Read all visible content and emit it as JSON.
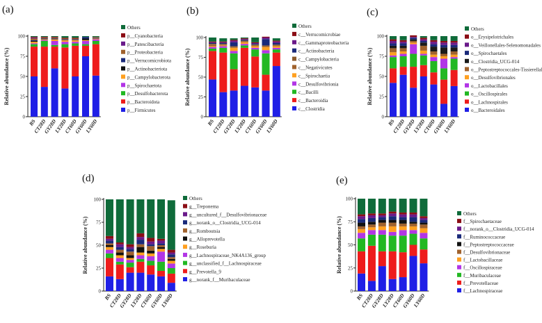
{
  "chart_data": [
    {
      "panel": "(a)",
      "type": "bar",
      "stacked": true,
      "ylabel": "Relative abundance (%)",
      "ylim": [
        0,
        100
      ],
      "yticks": [
        "0",
        "25",
        "50",
        "75",
        "100"
      ],
      "categories": [
        "BS",
        "CT28D",
        "GY28D",
        "LY28D",
        "CT60D",
        "GY60D",
        "LY60D"
      ],
      "series": [
        {
          "name": "p__Firmicutes",
          "color": "#1f1fe6",
          "values": [
            50,
            37,
            60,
            35,
            50,
            75,
            51
          ]
        },
        {
          "name": "p__Bacteroidota",
          "color": "#ee1c1c",
          "values": [
            37,
            50,
            27,
            51,
            38,
            13,
            39
          ]
        },
        {
          "name": "p__Desulfobacterota",
          "color": "#22b822",
          "values": [
            3,
            7,
            2,
            4,
            3,
            2,
            4
          ]
        },
        {
          "name": "p__Spirochaetota",
          "color": "#b235e6",
          "values": [
            1,
            1,
            5,
            3,
            2,
            4,
            2
          ]
        },
        {
          "name": "p__Campylobacterota",
          "color": "#ffa020",
          "values": [
            2,
            1,
            2,
            2,
            2,
            1,
            1
          ]
        },
        {
          "name": "p__Actinobacteriota",
          "color": "#111111",
          "values": [
            1,
            0,
            0,
            0,
            0,
            2,
            0
          ]
        },
        {
          "name": "p__Verrucomicrobiota",
          "color": "#1a2a7a",
          "values": [
            1,
            1,
            1,
            1,
            1,
            2,
            1
          ]
        },
        {
          "name": "p__Proteobacteria",
          "color": "#a0622d",
          "values": [
            2,
            1,
            1,
            1,
            1,
            0,
            1
          ]
        },
        {
          "name": "p__Patescibacteria",
          "color": "#6a1a8a",
          "values": [
            1,
            0,
            0,
            0,
            0,
            0,
            0
          ]
        },
        {
          "name": "p__Cyanobacteria",
          "color": "#8b0d15",
          "values": [
            1,
            1,
            1,
            1,
            1,
            0,
            0
          ]
        },
        {
          "name": "Others",
          "color": "#0f6b3a",
          "values": [
            1,
            1,
            1,
            2,
            2,
            1,
            1
          ]
        }
      ]
    },
    {
      "panel": "(b)",
      "type": "bar",
      "stacked": true,
      "ylabel": "Relative abundance (%)",
      "ylim": [
        0,
        100
      ],
      "yticks": [
        "0",
        "25",
        "50",
        "75",
        "100"
      ],
      "categories": [
        "BS",
        "CT28D",
        "GY28D",
        "LY28D",
        "CT60D",
        "GY60D",
        "LY60D"
      ],
      "series": [
        {
          "name": "c__Clostridia",
          "color": "#1f1fe6",
          "values": [
            47,
            31,
            33,
            39,
            37,
            33,
            64
          ]
        },
        {
          "name": "c__Bacteroidia",
          "color": "#ee1c1c",
          "values": [
            36,
            50,
            27,
            48,
            39,
            20,
            17
          ]
        },
        {
          "name": "c__Bacilli",
          "color": "#22b822",
          "values": [
            3,
            6,
            20,
            3,
            9,
            27,
            4
          ]
        },
        {
          "name": "c__Desulfovibrionia",
          "color": "#b235e6",
          "values": [
            2,
            2,
            3,
            2,
            2,
            4,
            2
          ]
        },
        {
          "name": "c__Spirochaetia",
          "color": "#ffa020",
          "values": [
            1,
            1,
            4,
            2,
            2,
            4,
            2
          ]
        },
        {
          "name": "c__Negativicutes",
          "color": "#a0622d",
          "values": [
            2,
            1,
            1,
            1,
            1,
            1,
            1
          ]
        },
        {
          "name": "c__Campylobacteria",
          "color": "#8b5a2b",
          "values": [
            1,
            1,
            1,
            1,
            1,
            1,
            1
          ]
        },
        {
          "name": "c__Actinobacteria",
          "color": "#1a2a7a",
          "values": [
            1,
            1,
            5,
            1,
            1,
            8,
            2
          ]
        },
        {
          "name": "c__Gammaproteobacteria",
          "color": "#6a1a8a",
          "values": [
            1,
            1,
            2,
            1,
            1,
            2,
            2
          ]
        },
        {
          "name": "c__Verrucomicrobiae",
          "color": "#8b0d15",
          "values": [
            1,
            1,
            1,
            1,
            1,
            1,
            1
          ]
        },
        {
          "name": "Others",
          "color": "#0f6b3a",
          "values": [
            5,
            4,
            2,
            1,
            6,
            0,
            3
          ]
        }
      ]
    },
    {
      "panel": "(c)",
      "type": "bar",
      "stacked": true,
      "ylabel": "Relative abundance (%)",
      "ylim": [
        0,
        100
      ],
      "yticks": [
        "0",
        "25",
        "50",
        "75",
        "100"
      ],
      "categories": [
        "BS",
        "CT28D",
        "GY28D",
        "LY28D",
        "CT60D",
        "GY60D",
        "LY60D"
      ],
      "series": [
        {
          "name": "o__Bacteroidales",
          "color": "#1f1fe6",
          "values": [
            42,
            52,
            36,
            50,
            40,
            16,
            38
          ]
        },
        {
          "name": "o__Lachnospirales",
          "color": "#ee1c1c",
          "values": [
            18,
            10,
            26,
            14,
            15,
            30,
            20
          ]
        },
        {
          "name": "o__Oscillospirales",
          "color": "#22b822",
          "values": [
            14,
            13,
            16,
            12,
            14,
            14,
            14
          ]
        },
        {
          "name": "o__Lactobacillales",
          "color": "#b235e6",
          "values": [
            2,
            3,
            12,
            2,
            5,
            12,
            2
          ]
        },
        {
          "name": "o__Desulfovibrionales",
          "color": "#ffa020",
          "values": [
            4,
            3,
            2,
            4,
            3,
            3,
            3
          ]
        },
        {
          "name": "o__Peptostreptococcales-Tissierellales",
          "color": "#a0622d",
          "values": [
            5,
            4,
            2,
            6,
            4,
            3,
            4
          ]
        },
        {
          "name": "o__Clostridia_UCG-014",
          "color": "#1a1a1a",
          "values": [
            3,
            3,
            2,
            4,
            6,
            8,
            5
          ]
        },
        {
          "name": "o__Spirochaetales",
          "color": "#1a2a7a",
          "values": [
            3,
            3,
            2,
            2,
            3,
            3,
            3
          ]
        },
        {
          "name": "o__Veillonellales-Selenomonadales",
          "color": "#6a1a8a",
          "values": [
            3,
            2,
            1,
            2,
            3,
            3,
            3
          ]
        },
        {
          "name": "o__Erysipelotrichales",
          "color": "#8b0d15",
          "values": [
            2,
            2,
            2,
            2,
            2,
            2,
            2
          ]
        },
        {
          "name": "Others",
          "color": "#0f6b3a",
          "values": [
            4,
            5,
            0,
            2,
            5,
            6,
            6
          ]
        }
      ]
    },
    {
      "panel": "(d)",
      "type": "bar",
      "stacked": true,
      "ylabel": "Relative abundance (%)",
      "ylim": [
        0,
        100
      ],
      "yticks": [
        "0",
        "25",
        "50",
        "75",
        "100"
      ],
      "categories": [
        "BS",
        "CT28D",
        "GY28D",
        "LY28D",
        "CT60D",
        "GY60D",
        "LY60D"
      ],
      "series": [
        {
          "name": "g__norank_f__Muribaculaceae",
          "color": "#1f1fe6",
          "values": [
            16,
            13,
            20,
            20,
            18,
            16,
            9
          ]
        },
        {
          "name": "g__Prevotella_9",
          "color": "#ee1c1c",
          "values": [
            20,
            16,
            6,
            12,
            10,
            6,
            10
          ]
        },
        {
          "name": "g__unclassified_f__Lachnospiraceae",
          "color": "#22b822",
          "values": [
            5,
            3,
            5,
            3,
            5,
            10,
            6
          ]
        },
        {
          "name": "g__Lachnospiraceae_NK4A136_group",
          "color": "#b235e6",
          "values": [
            4,
            4,
            3,
            4,
            5,
            11,
            5
          ]
        },
        {
          "name": "g__Roseburia",
          "color": "#ffa020",
          "values": [
            3,
            3,
            2,
            3,
            3,
            3,
            3
          ]
        },
        {
          "name": "g__Alloprevotella",
          "color": "#111111",
          "values": [
            2,
            3,
            3,
            6,
            3,
            2,
            2
          ]
        },
        {
          "name": "g__Romboutsia",
          "color": "#a0622d",
          "values": [
            2,
            3,
            4,
            3,
            5,
            2,
            2
          ]
        },
        {
          "name": "g__norank_o__Clostridia_UCG-014",
          "color": "#1a2a7a",
          "values": [
            3,
            3,
            3,
            5,
            2,
            2,
            3
          ]
        },
        {
          "name": "g__uncultured_f__Desulfovibrionaceae",
          "color": "#6a1a8a",
          "values": [
            2,
            3,
            2,
            3,
            3,
            3,
            2
          ]
        },
        {
          "name": "g__Treponema",
          "color": "#8b0d15",
          "values": [
            3,
            2,
            3,
            4,
            4,
            2,
            3
          ]
        },
        {
          "name": "Others",
          "color": "#0f6b3a",
          "values": [
            40,
            47,
            49,
            37,
            42,
            43,
            54
          ]
        }
      ]
    },
    {
      "panel": "(e)",
      "type": "bar",
      "stacked": true,
      "ylabel": "Relative abundance (%)",
      "ylim": [
        0,
        100
      ],
      "yticks": [
        "0",
        "25",
        "50",
        "75",
        "100"
      ],
      "categories": [
        "BS",
        "CT28D",
        "GY28D",
        "LY28D",
        "CT60D",
        "GY60D",
        "LY60D"
      ],
      "series": [
        {
          "name": "f__Lachnospiraceae",
          "color": "#1f1fe6",
          "values": [
            19,
            11,
            27,
            13,
            15,
            38,
            30
          ]
        },
        {
          "name": "f__Prevotellaceae",
          "color": "#ee1c1c",
          "values": [
            24,
            38,
            16,
            30,
            27,
            12,
            15
          ]
        },
        {
          "name": "f__Muribaculaceae",
          "color": "#22b822",
          "values": [
            14,
            12,
            18,
            17,
            18,
            12,
            12
          ]
        },
        {
          "name": "f__Oscillospiraceae",
          "color": "#b235e6",
          "values": [
            6,
            5,
            5,
            4,
            6,
            4,
            6
          ]
        },
        {
          "name": "f__Lactobacillaceae",
          "color": "#ffa020",
          "values": [
            4,
            3,
            4,
            6,
            4,
            4,
            5
          ]
        },
        {
          "name": "f__Desulfovibrionaceae",
          "color": "#a0622d",
          "values": [
            3,
            3,
            4,
            4,
            3,
            3,
            4
          ]
        },
        {
          "name": "f__Peptostreptococcaceae",
          "color": "#111111",
          "values": [
            4,
            3,
            3,
            3,
            4,
            2,
            2
          ]
        },
        {
          "name": "f__Ruminococcaceae",
          "color": "#1a2a7a",
          "values": [
            4,
            4,
            3,
            4,
            3,
            5,
            3
          ]
        },
        {
          "name": "f__norank_o__Clostridia_UCG-014",
          "color": "#6a1a8a",
          "values": [
            3,
            3,
            2,
            3,
            3,
            3,
            2
          ]
        },
        {
          "name": "f__Spirochaetaceae",
          "color": "#8b0d15",
          "values": [
            2,
            2,
            2,
            2,
            2,
            2,
            2
          ]
        },
        {
          "name": "Others",
          "color": "#0f6b3a",
          "values": [
            17,
            16,
            16,
            14,
            15,
            15,
            19
          ]
        }
      ]
    }
  ]
}
